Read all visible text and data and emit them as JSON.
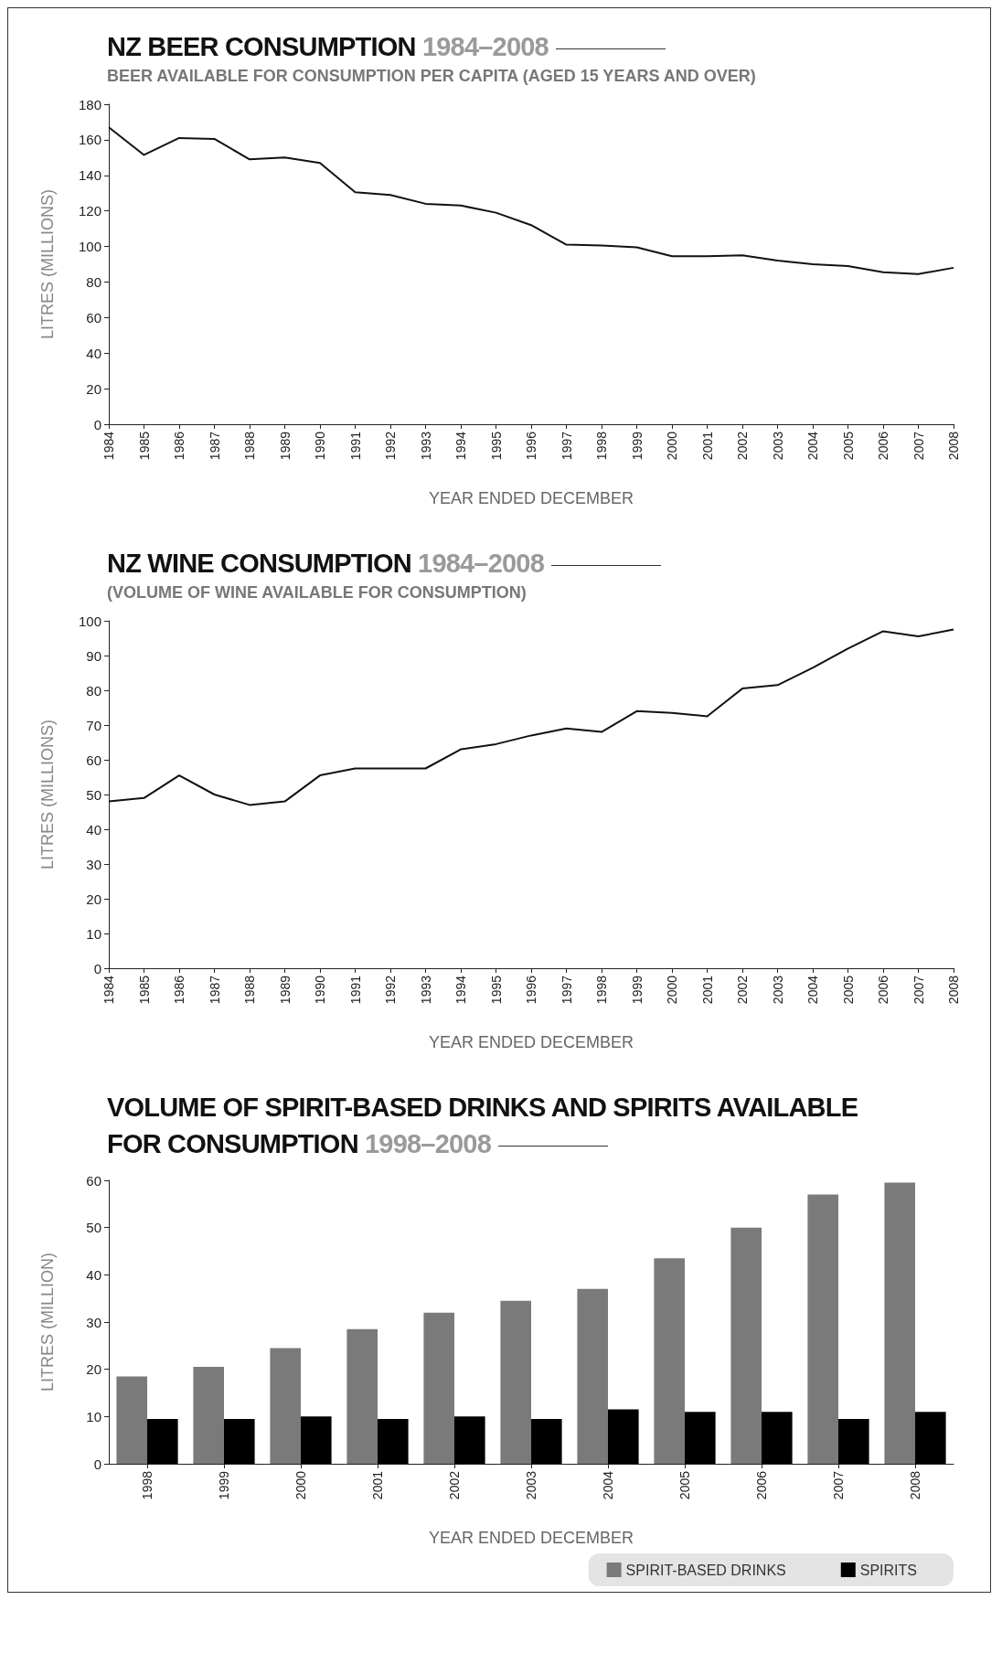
{
  "chart_data": [
    {
      "type": "line",
      "title": "NZ BEER CONSUMPTION 1984–2008",
      "subtitle": "BEER AVAILABLE FOR CONSUMPTION PER CAPITA (AGED 15 YEARS AND OVER)",
      "xlabel": "YEAR ENDED DECEMBER",
      "ylabel": "LITRES (MILLIONS)",
      "categories": [
        "1984",
        "1985",
        "1986",
        "1987",
        "1988",
        "1989",
        "1990",
        "1991",
        "1992",
        "1993",
        "1994",
        "1995",
        "1996",
        "1997",
        "1998",
        "1999",
        "2000",
        "2001",
        "2002",
        "2003",
        "2004",
        "2005",
        "2006",
        "2007",
        "2008"
      ],
      "series": [
        {
          "color": "#111111",
          "values": [
            167,
            151.5,
            161,
            160.5,
            149,
            150,
            147,
            130.5,
            129,
            124,
            123,
            119,
            112,
            101,
            100.5,
            99.5,
            94.5,
            94.5,
            95,
            92,
            90,
            89,
            85.5,
            84.5,
            88
          ]
        }
      ],
      "ylim": [
        0,
        180
      ],
      "yticks": [
        0,
        20,
        40,
        60,
        80,
        100,
        120,
        140,
        160,
        180
      ],
      "grid": false,
      "marker": "none"
    },
    {
      "type": "line",
      "title": "NZ WINE CONSUMPTION 1984–2008",
      "subtitle": "(VOLUME OF WINE AVAILABLE FOR CONSUMPTION)",
      "xlabel": "YEAR ENDED DECEMBER",
      "ylabel": "LITRES (MILLIONS)",
      "categories": [
        "1984",
        "1985",
        "1986",
        "1987",
        "1988",
        "1989",
        "1990",
        "1991",
        "1992",
        "1993",
        "1994",
        "1995",
        "1996",
        "1997",
        "1998",
        "1999",
        "2000",
        "2001",
        "2002",
        "2003",
        "2004",
        "2005",
        "2006",
        "2007",
        "2008"
      ],
      "series": [
        {
          "color": "#111111",
          "values": [
            48,
            49,
            55.5,
            50,
            47,
            48,
            55.5,
            57.5,
            57.5,
            57.5,
            63,
            64.5,
            67,
            69,
            68,
            74,
            73.5,
            72.5,
            80.5,
            81.5,
            86.5,
            92,
            97,
            95.5,
            97.5
          ]
        }
      ],
      "ylim": [
        0,
        100
      ],
      "yticks": [
        0,
        10,
        20,
        30,
        40,
        50,
        60,
        70,
        80,
        90,
        100
      ],
      "grid": false,
      "marker": "none"
    },
    {
      "type": "bar",
      "title": "VOLUME OF SPIRIT-BASED DRINKS AND SPIRITS AVAILABLE FOR CONSUMPTION 1998–2008",
      "xlabel": "YEAR ENDED DECEMBER",
      "ylabel": "LITRES (MILLION)",
      "categories": [
        "1998",
        "1999",
        "2000",
        "2001",
        "2002",
        "2003",
        "2004",
        "2005",
        "2006",
        "2007",
        "2008"
      ],
      "series": [
        {
          "name": "SPIRIT-BASED DRINKS",
          "color": "#7a7a7a",
          "values": [
            18.5,
            20.5,
            24.5,
            28.5,
            32,
            34.5,
            37,
            43.5,
            50,
            57,
            59.5
          ]
        },
        {
          "name": "SPIRITS",
          "color": "#000000",
          "values": [
            9.5,
            9.5,
            10,
            9.5,
            10,
            9.5,
            11.5,
            11,
            11,
            9.5,
            11
          ]
        }
      ],
      "ylim": [
        0,
        60
      ],
      "yticks": [
        0,
        10,
        20,
        30,
        40,
        50,
        60
      ],
      "grid": false,
      "legend": "bottom right"
    }
  ]
}
